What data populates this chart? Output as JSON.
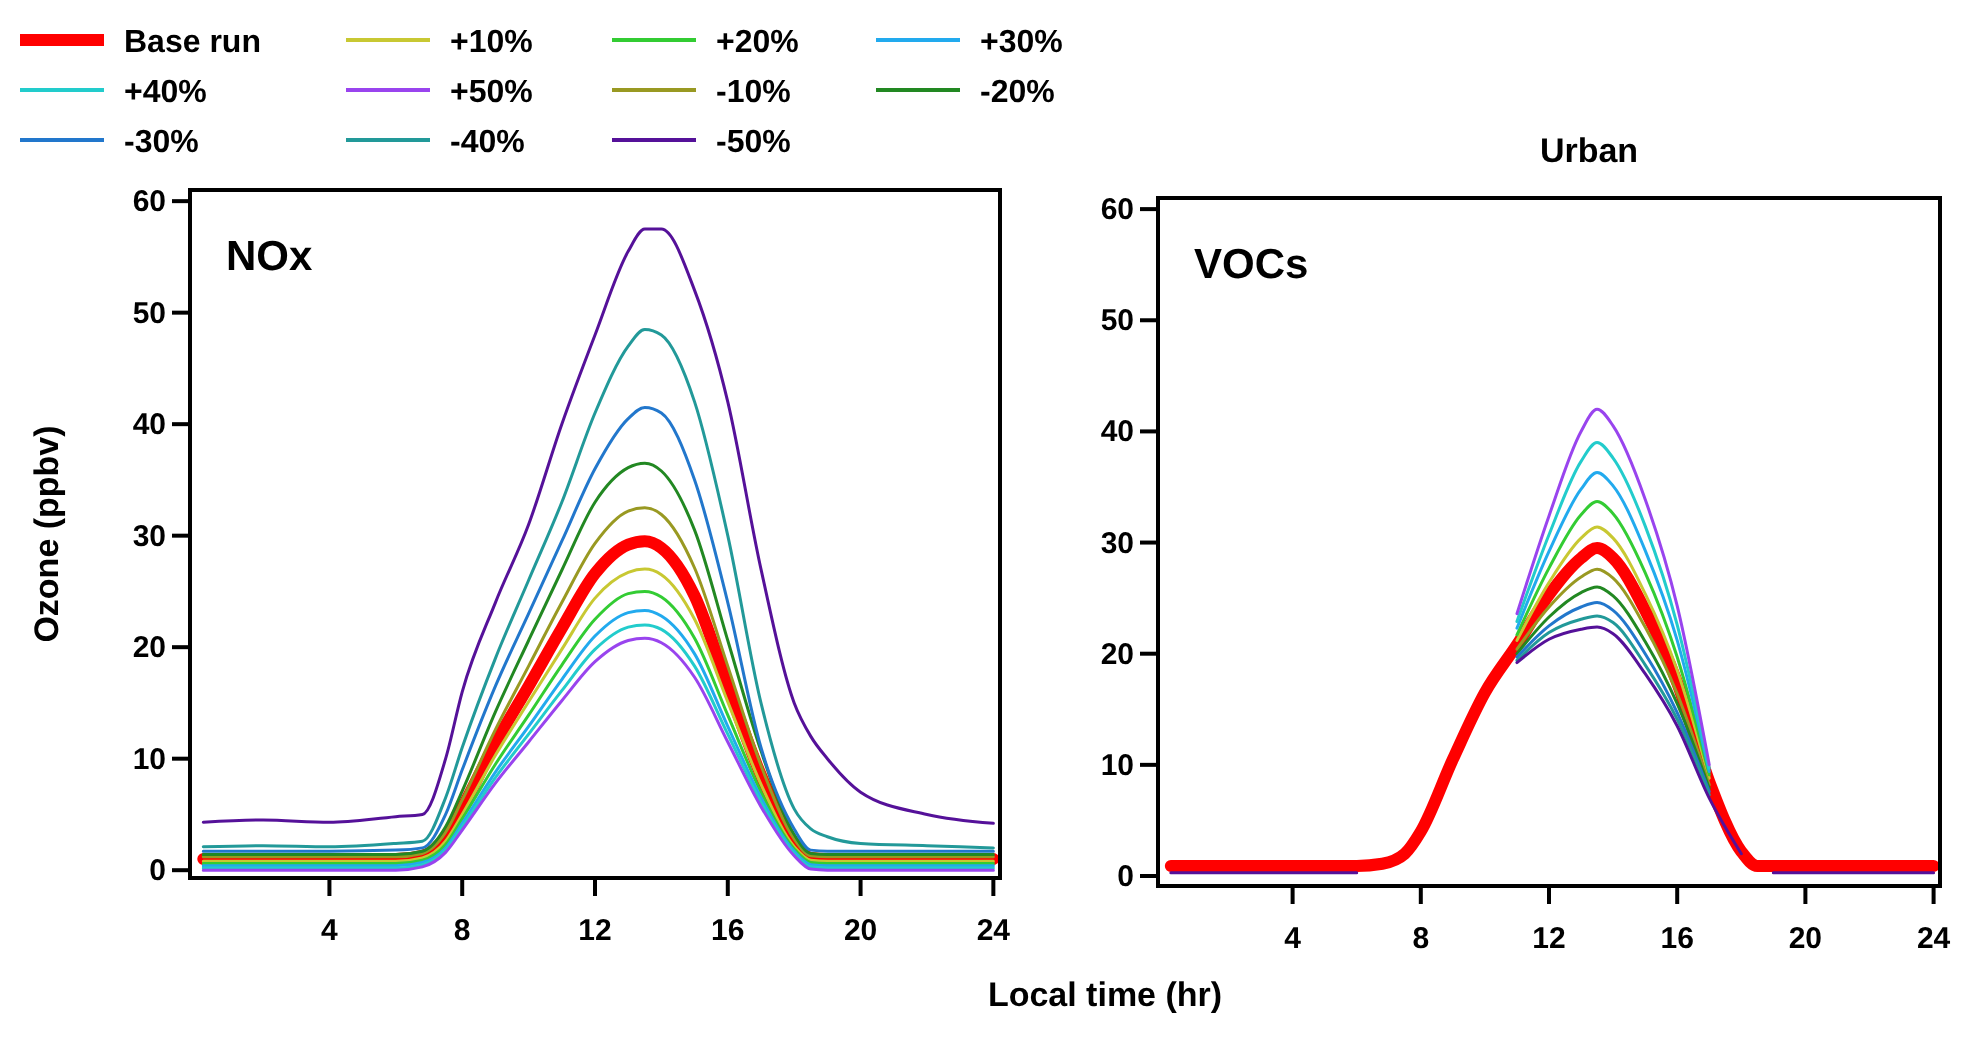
{
  "chart_data": [
    {
      "type": "line",
      "ylabel": "Ozone (ppbv)",
      "xlabel": "Local time (hr)",
      "annotations": [
        "NOx"
      ],
      "legend": "top",
      "line_style": "solid",
      "marker": "none",
      "xlim": [
        -0.2,
        24.2
      ],
      "xticks": [
        4,
        8,
        12,
        16,
        20,
        24
      ],
      "ylim": [
        -0.7,
        61
      ],
      "yticks": [
        0,
        10,
        20,
        30,
        40,
        50,
        60
      ],
      "x": [
        0.2,
        2,
        4,
        6,
        6.8,
        7.5,
        8,
        9,
        10,
        11,
        12,
        13,
        13.5,
        14,
        15,
        16,
        17,
        18,
        18.5,
        19,
        20,
        22,
        24
      ],
      "series": [
        {
          "name": "Base run",
          "color": "#ff0000",
          "values": [
            1.0,
            1.0,
            1.0,
            1.0,
            1.3,
            3.0,
            5.6,
            11.4,
            16.5,
            21.7,
            26.6,
            29.2,
            29.5,
            28.9,
            24.6,
            16.5,
            8.5,
            2.4,
            1.1,
            1.0,
            1.0,
            1.0,
            1.0
          ]
        },
        {
          "name": "+10%",
          "color": "#c8c832",
          "values": [
            0.8,
            0.8,
            0.8,
            0.8,
            1.1,
            2.6,
            5.0,
            10.3,
            15.1,
            19.8,
            24.4,
            26.7,
            27,
            26.5,
            22.5,
            15.1,
            7.7,
            2.1,
            0.9,
            0.8,
            0.8,
            0.8,
            0.8
          ]
        },
        {
          "name": "+20%",
          "color": "#33cc33",
          "values": [
            0.6,
            0.6,
            0.6,
            0.6,
            0.9,
            2.3,
            4.6,
            9.5,
            13.9,
            18.4,
            22.5,
            24.8,
            25,
            24.5,
            20.8,
            13.9,
            7.0,
            1.9,
            0.7,
            0.6,
            0.6,
            0.6,
            0.6
          ]
        },
        {
          "name": "+30%",
          "color": "#22aaee",
          "values": [
            0.4,
            0.4,
            0.4,
            0.4,
            0.7,
            2.0,
            4.2,
            8.8,
            12.9,
            17.1,
            21,
            23.1,
            23.3,
            22.8,
            19.4,
            12.9,
            6.5,
            1.7,
            0.5,
            0.4,
            0.4,
            0.4,
            0.4
          ]
        },
        {
          "name": "+40%",
          "color": "#22cccc",
          "values": [
            0.2,
            0.2,
            0.2,
            0.2,
            0.5,
            1.8,
            3.9,
            8.3,
            12.2,
            16.1,
            19.8,
            21.8,
            22,
            21.6,
            18.3,
            12.2,
            6.1,
            1.5,
            0.3,
            0.2,
            0.2,
            0.2,
            0.2
          ]
        },
        {
          "name": "+50%",
          "color": "#9944ee",
          "values": [
            0,
            0,
            0,
            0,
            0.3,
            1.6,
            3.6,
            7.8,
            11.5,
            15.2,
            18.7,
            20.6,
            20.8,
            20.4,
            17.3,
            11.5,
            5.7,
            1.3,
            0.1,
            0,
            0,
            0,
            0
          ]
        },
        {
          "name": "-10%",
          "color": "#999922",
          "values": [
            1.2,
            1.2,
            1.2,
            1.2,
            1.5,
            3.4,
            6.3,
            12.6,
            18.3,
            24,
            29.3,
            32.2,
            32.5,
            31.9,
            27.1,
            18.3,
            9.4,
            2.8,
            1.3,
            1.2,
            1.2,
            1.2,
            1.2
          ]
        },
        {
          "name": "-20%",
          "color": "#228822",
          "values": [
            1.4,
            1.4,
            1.4,
            1.4,
            1.7,
            3.9,
            7.1,
            14.2,
            20.6,
            26.9,
            33,
            36.1,
            36.5,
            35.8,
            30.5,
            20.6,
            10.7,
            3.2,
            1.5,
            1.4,
            1.4,
            1.4,
            1.4
          ]
        },
        {
          "name": "-30%",
          "color": "#2277cc",
          "values": [
            1.7,
            1.7,
            1.7,
            1.8,
            2.0,
            5,
            9,
            16.5,
            23,
            29.5,
            36,
            40.5,
            41.5,
            41,
            35,
            24,
            11,
            3.7,
            1.8,
            1.7,
            1.7,
            1.7,
            1.7
          ]
        },
        {
          "name": "-40%",
          "color": "#229999",
          "values": [
            2.1,
            2.2,
            2.1,
            2.4,
            2.6,
            6.5,
            11,
            19,
            26,
            33,
            41,
            47,
            48.5,
            48,
            42,
            30,
            15,
            5.5,
            3.7,
            3,
            2.4,
            2.2,
            2.0
          ]
        },
        {
          "name": "-50%",
          "color": "#551199",
          "values": [
            4.3,
            4.5,
            4.3,
            4.8,
            5,
            10,
            16,
            24,
            31,
            40,
            48,
            55.5,
            57.5,
            57.5,
            52,
            42,
            27,
            15,
            12,
            10,
            7,
            5,
            4.2
          ]
        }
      ]
    },
    {
      "type": "line",
      "title": "Urban",
      "annotations": [
        "VOCs"
      ],
      "line_style": "solid",
      "marker": "none",
      "xlim": [
        -0.2,
        24.2
      ],
      "xticks": [
        4,
        8,
        12,
        16,
        20,
        24
      ],
      "ylim": [
        -0.9,
        61
      ],
      "yticks": [
        0,
        10,
        20,
        30,
        40,
        50,
        60
      ],
      "x": [
        0.2,
        2,
        4,
        6,
        6.8,
        7.5,
        8,
        9,
        10,
        11,
        12,
        13,
        13.5,
        14,
        15,
        16,
        17,
        18,
        18.5,
        19,
        20,
        22,
        24
      ],
      "series": [
        {
          "name": "Base run",
          "color": "#ff0000",
          "values": [
            0.9,
            0.9,
            0.9,
            0.9,
            1.1,
            2,
            4,
            10.5,
            16.5,
            20.8,
            25.3,
            28.6,
            29.5,
            28.6,
            23.9,
            17.4,
            8.5,
            2.2,
            0.9,
            0.9,
            0.9,
            0.9,
            0.9
          ]
        },
        {
          "name": "+10%",
          "color": "#c8c832",
          "values": [
            null,
            null,
            null,
            null,
            null,
            null,
            null,
            null,
            null,
            21.2,
            26.4,
            30.4,
            31.4,
            30.4,
            25.4,
            18.5,
            8.8,
            null,
            null,
            null,
            null,
            null,
            null
          ]
        },
        {
          "name": "+20%",
          "color": "#33cc33",
          "values": [
            null,
            null,
            null,
            null,
            null,
            null,
            null,
            null,
            null,
            21.7,
            27.7,
            32.5,
            33.7,
            32.6,
            27.3,
            19.7,
            9.1,
            null,
            null,
            null,
            null,
            null,
            null
          ]
        },
        {
          "name": "+30%",
          "color": "#22aaee",
          "values": [
            null,
            null,
            null,
            null,
            null,
            null,
            null,
            null,
            null,
            22.3,
            29.2,
            34.8,
            36.3,
            35.1,
            29.3,
            21.2,
            9.4,
            null,
            null,
            null,
            null,
            null,
            null
          ]
        },
        {
          "name": "+40%",
          "color": "#22cccc",
          "values": [
            null,
            null,
            null,
            null,
            null,
            null,
            null,
            null,
            null,
            22.9,
            30.7,
            37.3,
            39,
            37.6,
            31.5,
            22.6,
            9.7,
            null,
            null,
            null,
            null,
            null,
            null
          ]
        },
        {
          "name": "+50%",
          "color": "#9944ee",
          "values": [
            null,
            null,
            null,
            null,
            null,
            null,
            null,
            null,
            null,
            23.6,
            32.4,
            40,
            42,
            40.5,
            33.9,
            24.3,
            10.0,
            null,
            null,
            null,
            null,
            null,
            null
          ]
        },
        {
          "name": "-10%",
          "color": "#999922",
          "values": [
            null,
            null,
            null,
            null,
            null,
            null,
            null,
            null,
            null,
            20.4,
            24.2,
            26.9,
            27.6,
            26.8,
            22.4,
            16.4,
            8.2,
            null,
            null,
            null,
            null,
            null,
            null
          ]
        },
        {
          "name": "-20%",
          "color": "#228822",
          "values": [
            null,
            null,
            null,
            null,
            null,
            null,
            null,
            null,
            null,
            20.0,
            23.3,
            25.5,
            26.0,
            25.2,
            21.1,
            15.5,
            7.9,
            null,
            null,
            null,
            null,
            null,
            null
          ]
        },
        {
          "name": "-30%",
          "color": "#2277cc",
          "values": [
            null,
            null,
            null,
            null,
            null,
            null,
            null,
            null,
            null,
            19.7,
            22.5,
            24.2,
            24.6,
            23.9,
            20.0,
            14.7,
            7.6,
            null,
            null,
            null,
            null,
            null,
            null
          ]
        },
        {
          "name": "-40%",
          "color": "#229999",
          "values": [
            null,
            null,
            null,
            null,
            null,
            null,
            null,
            null,
            null,
            19.4,
            21.9,
            23.1,
            23.4,
            22.8,
            19.0,
            14.1,
            7.3,
            null,
            null,
            null,
            null,
            null,
            null
          ]
        },
        {
          "name": "-50%",
          "color": "#551199",
          "values": [
            0.3,
            0.3,
            0.3,
            0.3,
            null,
            null,
            null,
            null,
            null,
            19.2,
            21.3,
            22.2,
            22.4,
            21.8,
            18.2,
            13.5,
            7.0,
            2.0,
            null,
            0.3,
            0.3,
            0.3,
            0.3
          ]
        }
      ]
    }
  ]
}
